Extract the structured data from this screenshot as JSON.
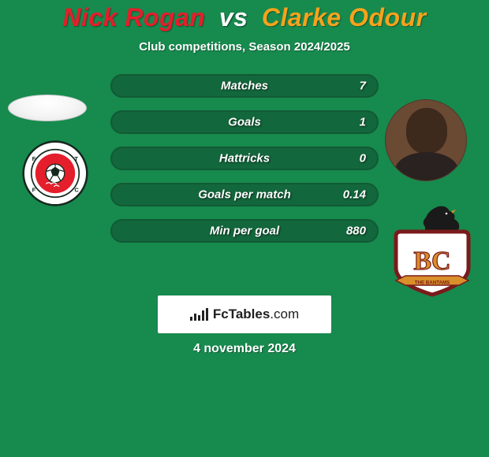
{
  "theme": {
    "background_color": "#178a4e",
    "accent_color": "#13673c",
    "player1_color": "#e41e2b",
    "player2_color": "#f6a21b",
    "subtitle_color": "#ffffff",
    "date_color": "#ffffff",
    "title_fontsize": 32,
    "subtitle_fontsize": 15,
    "stat_label_fontsize": 15
  },
  "title": {
    "player1": "Nick Rogan",
    "vs": "vs",
    "player2": "Clarke Odour"
  },
  "subtitle": "Club competitions, Season 2024/2025",
  "stats": {
    "type": "bar",
    "bar_color": "#13673c",
    "fill_color": "#178a4e",
    "border_color": "#115a34",
    "items": [
      {
        "label": "Matches",
        "value": "7",
        "fill_pct": 0
      },
      {
        "label": "Goals",
        "value": "1",
        "fill_pct": 0
      },
      {
        "label": "Hattricks",
        "value": "0",
        "fill_pct": 0
      },
      {
        "label": "Goals per match",
        "value": "0.14",
        "fill_pct": 0
      },
      {
        "label": "Min per goal",
        "value": "880",
        "fill_pct": 0
      }
    ]
  },
  "brand": {
    "icon": "bar-chart-icon",
    "text_bold": "FcTables",
    "text_light": ".com",
    "box_bg": "#ffffff",
    "text_color": "#202020"
  },
  "date": "4 november 2024",
  "crest1": {
    "outer_ring": "#ffffff",
    "ring_border": "#1a1a1a",
    "center": "#e41e2b",
    "ball": "#ffffff"
  },
  "crest2": {
    "shield_fill": "#ffffff",
    "shield_border": "#7a1b1b",
    "letters_color": "#d9902a",
    "banner_color": "#d9902a",
    "rooster_color": "#1a1a1a",
    "banner_text": "THE BANTAMS"
  }
}
